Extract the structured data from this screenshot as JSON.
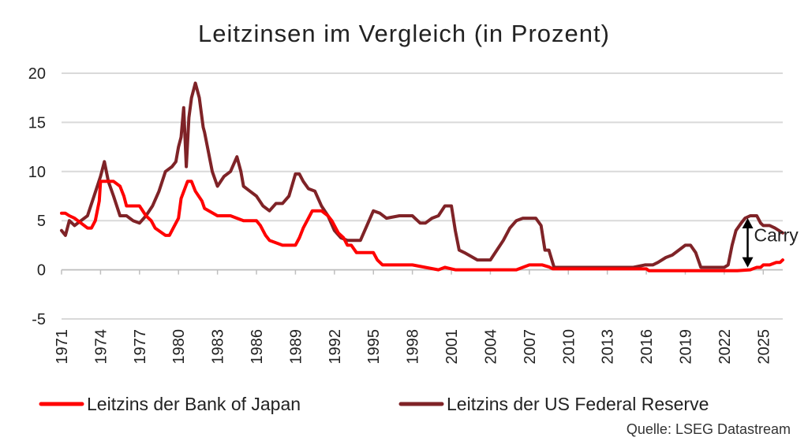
{
  "chart_data": {
    "type": "line",
    "title": "Leitzinsen im Vergleich (in Prozent)",
    "xlabel": "",
    "ylabel": "",
    "xlim": [
      1971,
      2026.5
    ],
    "ylim": [
      -5,
      20
    ],
    "yticks": [
      20,
      15,
      10,
      5,
      0,
      -5
    ],
    "xticks": [
      "1971",
      "1974",
      "1977",
      "1980",
      "1983",
      "1986",
      "1989",
      "1992",
      "1995",
      "1998",
      "2001",
      "2004",
      "2007",
      "2010",
      "2013",
      "2016",
      "2019",
      "2022",
      "2025"
    ],
    "grid": "horizontal",
    "legend_position": "bottom",
    "series": [
      {
        "name": "Leitzins der Bank of Japan",
        "color": "#ff0000",
        "x": [
          1971.0,
          1971.3,
          1971.6,
          1972.0,
          1972.5,
          1973.0,
          1973.3,
          1973.6,
          1973.9,
          1974.0,
          1975.0,
          1975.5,
          1975.8,
          1976.0,
          1977.0,
          1977.5,
          1977.9,
          1978.2,
          1979.0,
          1979.3,
          1979.6,
          1980.0,
          1980.2,
          1980.7,
          1981.0,
          1981.3,
          1981.8,
          1982.0,
          1983.0,
          1984.0,
          1985.0,
          1986.0,
          1986.3,
          1986.7,
          1987.0,
          1988.0,
          1989.0,
          1989.3,
          1989.6,
          1990.0,
          1990.3,
          1990.7,
          1991.0,
          1991.5,
          1991.8,
          1992.0,
          1992.3,
          1992.7,
          1993.0,
          1993.3,
          1993.7,
          1994.0,
          1995.0,
          1995.3,
          1995.7,
          1996.0,
          1998.0,
          1999.0,
          2000.0,
          2000.5,
          2001.0,
          2001.3,
          2002.0,
          2005.0,
          2006.0,
          2006.5,
          2007.0,
          2007.2,
          2008.0,
          2008.5,
          2008.8,
          2009.0,
          2010.0,
          2012.0,
          2015.0,
          2016.0,
          2016.2,
          2017.0,
          2020.0,
          2022.0,
          2023.0,
          2024.0,
          2024.2,
          2024.5,
          2024.8,
          2025.0,
          2025.5,
          2026.0,
          2026.3,
          2026.5
        ],
        "values": [
          5.75,
          5.75,
          5.5,
          5.25,
          4.75,
          4.25,
          4.25,
          5.0,
          7.0,
          9.0,
          9.0,
          8.5,
          7.5,
          6.5,
          6.5,
          5.5,
          5.0,
          4.25,
          3.5,
          3.5,
          4.25,
          5.25,
          7.25,
          9.0,
          9.0,
          8.0,
          7.0,
          6.25,
          5.5,
          5.5,
          5.0,
          5.0,
          4.5,
          3.5,
          3.0,
          2.5,
          2.5,
          3.25,
          4.25,
          5.25,
          6.0,
          6.0,
          6.0,
          5.5,
          5.0,
          4.5,
          3.75,
          3.25,
          2.5,
          2.5,
          1.75,
          1.75,
          1.75,
          1.0,
          0.5,
          0.5,
          0.5,
          0.25,
          0.0,
          0.25,
          0.1,
          0.0,
          0.0,
          0.0,
          0.0,
          0.25,
          0.5,
          0.5,
          0.5,
          0.3,
          0.1,
          0.1,
          0.1,
          0.1,
          0.1,
          0.1,
          -0.1,
          -0.1,
          -0.1,
          -0.1,
          -0.1,
          0.0,
          0.1,
          0.25,
          0.25,
          0.5,
          0.5,
          0.75,
          0.75,
          1.0
        ]
      },
      {
        "name": "Leitzins der US Federal Reserve",
        "color": "#7f2327",
        "x": [
          1971.0,
          1971.3,
          1971.6,
          1972.0,
          1972.5,
          1973.0,
          1973.5,
          1974.0,
          1974.3,
          1974.6,
          1975.0,
          1975.5,
          1976.0,
          1976.5,
          1977.0,
          1977.5,
          1978.0,
          1978.5,
          1979.0,
          1979.5,
          1979.8,
          1980.0,
          1980.2,
          1980.4,
          1980.6,
          1980.8,
          1981.0,
          1981.3,
          1981.6,
          1981.9,
          1982.0,
          1982.3,
          1982.6,
          1983.0,
          1983.5,
          1984.0,
          1984.5,
          1984.8,
          1985.0,
          1985.5,
          1986.0,
          1986.5,
          1987.0,
          1987.5,
          1988.0,
          1988.5,
          1989.0,
          1989.3,
          1989.6,
          1990.0,
          1990.5,
          1991.0,
          1991.5,
          1992.0,
          1992.5,
          1993.0,
          1994.0,
          1994.5,
          1995.0,
          1995.5,
          1996.0,
          1997.0,
          1998.0,
          1998.6,
          1999.0,
          1999.5,
          2000.0,
          2000.5,
          2001.0,
          2001.3,
          2001.6,
          2002.0,
          2003.0,
          2003.5,
          2004.0,
          2004.5,
          2005.0,
          2005.5,
          2006.0,
          2006.5,
          2007.0,
          2007.5,
          2007.9,
          2008.2,
          2008.5,
          2008.9,
          2009.0,
          2015.0,
          2015.9,
          2016.5,
          2016.9,
          2017.5,
          2018.0,
          2018.5,
          2019.0,
          2019.4,
          2019.8,
          2020.2,
          2022.0,
          2022.3,
          2022.6,
          2022.9,
          2023.3,
          2023.6,
          2024.0,
          2024.5,
          2024.8,
          2025.0,
          2025.5,
          2025.9,
          2026.5
        ],
        "values": [
          4.0,
          3.5,
          5.0,
          4.5,
          5.0,
          5.5,
          7.5,
          9.5,
          11.0,
          9.0,
          7.5,
          5.5,
          5.5,
          5.0,
          4.75,
          5.5,
          6.5,
          8.0,
          10.0,
          10.5,
          11.0,
          12.5,
          13.5,
          16.5,
          10.5,
          15.5,
          17.5,
          19.0,
          17.5,
          14.5,
          14.0,
          12.0,
          10.0,
          8.5,
          9.5,
          10.0,
          11.5,
          10.0,
          8.5,
          8.0,
          7.5,
          6.5,
          6.0,
          6.75,
          6.75,
          7.5,
          9.75,
          9.75,
          9.0,
          8.25,
          8.0,
          6.5,
          5.5,
          4.0,
          3.25,
          3.0,
          3.0,
          4.5,
          6.0,
          5.75,
          5.25,
          5.5,
          5.5,
          4.75,
          4.75,
          5.25,
          5.5,
          6.5,
          6.5,
          4.0,
          2.0,
          1.75,
          1.0,
          1.0,
          1.0,
          2.0,
          3.0,
          4.25,
          5.0,
          5.25,
          5.25,
          5.25,
          4.5,
          2.0,
          2.0,
          0.25,
          0.25,
          0.25,
          0.5,
          0.5,
          0.75,
          1.25,
          1.5,
          2.0,
          2.5,
          2.5,
          1.75,
          0.25,
          0.25,
          0.5,
          2.5,
          4.0,
          4.75,
          5.25,
          5.5,
          5.5,
          4.75,
          4.5,
          4.5,
          4.25,
          3.75
        ]
      }
    ],
    "annotations": [
      {
        "text": "Carry",
        "x": 2023.8,
        "from": 0.0,
        "to": 5.5
      }
    ]
  },
  "source": "Quelle: LSEG Datastream"
}
